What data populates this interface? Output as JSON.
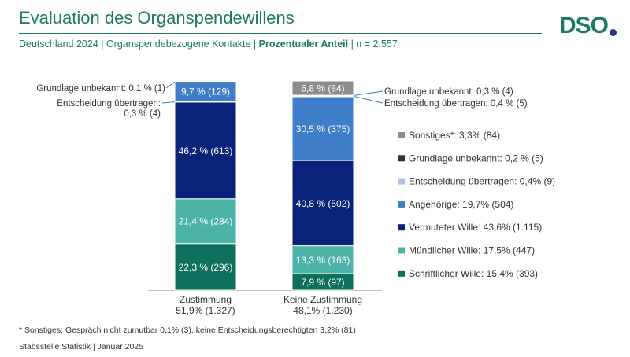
{
  "header": {
    "title": "Evaluation des Organspendewillens",
    "subtitle_plain": "Deutschland 2024 | Organspendebezogene Kontakte | ",
    "subtitle_bold": "Prozentualer Anteil",
    "subtitle_tail": " | n = 2.557",
    "logo_text": "DSO"
  },
  "chart_data": {
    "type": "bar",
    "stacked": true,
    "ylim": [
      0,
      100
    ],
    "colors": {
      "schriftlich": "#0e6f5c",
      "muendlich": "#4db3a6",
      "vermutet": "#0a237a",
      "angehoerige": "#3f7ec8",
      "entscheidung": "#a9c4e8",
      "grundlage": "#333333",
      "sonstiges": "#8c8c8c"
    },
    "bars": [
      {
        "name": "Zustimmung",
        "label_line1": "Zustimmung",
        "label_line2": "51,9% (1.327)",
        "segments": [
          {
            "key": "schriftlich",
            "value": 22.3,
            "label": "22,3 % (296)"
          },
          {
            "key": "muendlich",
            "value": 21.4,
            "label": "21,4 % (284)"
          },
          {
            "key": "vermutet",
            "value": 46.2,
            "label": "46,2 % (613)"
          },
          {
            "key": "entscheidung",
            "value": 0.3,
            "label": ""
          },
          {
            "key": "angehoerige",
            "value": 9.7,
            "label": "9,7 % (129)"
          },
          {
            "key": "grundlage",
            "value": 0.1,
            "label": ""
          }
        ],
        "callouts": [
          {
            "text_lines": [
              "Grundlage unbekannt: 0,1 % (1)"
            ],
            "key": "grundlage"
          },
          {
            "text_lines": [
              "Entscheidung übertragen:",
              "0,3 % (4)"
            ],
            "key": "entscheidung"
          }
        ]
      },
      {
        "name": "Keine Zustimmung",
        "label_line1": "Keine Zustimmung",
        "label_line2": "48,1% (1.230)",
        "segments": [
          {
            "key": "schriftlich",
            "value": 7.9,
            "label": "7,9 % (97)"
          },
          {
            "key": "muendlich",
            "value": 13.3,
            "label": "13,3 % (163)"
          },
          {
            "key": "vermutet",
            "value": 40.8,
            "label": "40,8 % (502)"
          },
          {
            "key": "angehoerige",
            "value": 30.5,
            "label": "30,5 % (375)"
          },
          {
            "key": "entscheidung",
            "value": 0.4,
            "label": ""
          },
          {
            "key": "grundlage",
            "value": 0.3,
            "label": ""
          },
          {
            "key": "sonstiges",
            "value": 6.8,
            "label": "6,8 % (84)"
          }
        ],
        "callouts": [
          {
            "text_lines": [
              "Grundlage unbekannt: 0,3 % (4)"
            ],
            "key": "grundlage"
          },
          {
            "text_lines": [
              "Entscheidung übertragen: 0,4 % (5)"
            ],
            "key": "entscheidung"
          }
        ]
      }
    ],
    "legend": [
      {
        "key": "sonstiges",
        "label": "Sonstiges*: 3,3% (84)"
      },
      {
        "key": "grundlage",
        "label": "Grundlage unbekannt: 0,2 % (5)"
      },
      {
        "key": "entscheidung",
        "label": "Entscheidung übertragen: 0,4% (9)"
      },
      {
        "key": "angehoerige",
        "label": "Angehörige: 19,7% (504)"
      },
      {
        "key": "vermutet",
        "label": "Vermuteter Wille: 43,6% (1.115)"
      },
      {
        "key": "muendlich",
        "label": "Mündlicher Wille: 17,5% (447)"
      },
      {
        "key": "schriftlich",
        "label": "Schriftlicher Wille: 15,4% (393)"
      }
    ]
  },
  "footer": {
    "footnote": "* Sonstiges: Gespräch nicht zumutbar 0,1% (3), keine Entscheidungsberechtigten 3,2% (81)",
    "source": "Stabsstelle Statistik | Januar 2025"
  }
}
